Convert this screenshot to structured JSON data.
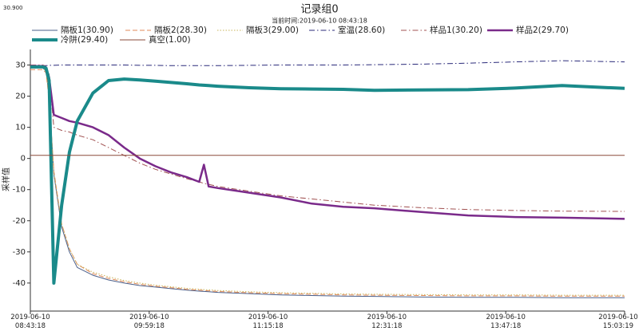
{
  "chart_data": {
    "type": "line",
    "corner_label": "30.900",
    "title": "记录组0",
    "subtitle": "当前时间:2019-06-10  08:43:18",
    "y_label": "采样值",
    "ylim": [
      -49,
      35
    ],
    "yticks": [
      30,
      20,
      10,
      0,
      -10,
      -20,
      -30,
      -40
    ],
    "xlim": [
      "2019-06-10 08:43:18",
      "2019-06-10 15:03:19"
    ],
    "xticks": [
      "2019-06-10 08:43:18",
      "2019-06-10 09:59:18",
      "2019-06-10 11:15:18",
      "2019-06-10 12:31:18",
      "2019-06-10 13:47:18",
      "2019-06-10 15:03:19"
    ],
    "grid": false,
    "x": [
      "2019-06-10 08:43:18",
      "2019-06-10 08:46:18",
      "2019-06-10 08:49:18",
      "2019-06-10 08:51:18",
      "2019-06-10 08:53:18",
      "2019-06-10 08:55:18",
      "2019-06-10 08:58:18",
      "2019-06-10 09:03:18",
      "2019-06-10 09:08:18",
      "2019-06-10 09:13:18",
      "2019-06-10 09:23:18",
      "2019-06-10 09:33:18",
      "2019-06-10 09:43:18",
      "2019-06-10 09:53:18",
      "2019-06-10 10:03:18",
      "2019-06-10 10:13:18",
      "2019-06-10 10:23:18",
      "2019-06-10 10:31:18",
      "2019-06-10 10:34:18",
      "2019-06-10 10:37:18",
      "2019-06-10 10:43:18",
      "2019-06-10 11:03:18",
      "2019-06-10 11:23:18",
      "2019-06-10 11:43:18",
      "2019-06-10 12:03:18",
      "2019-06-10 12:23:18",
      "2019-06-10 12:53:18",
      "2019-06-10 13:23:18",
      "2019-06-10 13:53:18",
      "2019-06-10 14:23:18",
      "2019-06-10 15:03:18"
    ],
    "series": [
      {
        "name": "隔板1(30.90)",
        "color": "#4a5f8a",
        "style": "solid",
        "line_width": 1,
        "values": [
          29,
          29,
          29,
          29,
          28,
          20,
          -5,
          -22,
          -30,
          -35,
          -37.5,
          -39,
          -40,
          -40.8,
          -41.3,
          -41.8,
          -42.3,
          -42.6,
          -42.7,
          -42.8,
          -43,
          -43.4,
          -43.8,
          -44,
          -44.2,
          -44.3,
          -44.5,
          -44.6,
          -44.6,
          -44.7,
          -44.7
        ]
      },
      {
        "name": "隔板2(28.30)",
        "color": "#e08a5a",
        "style": "dashed",
        "line_width": 1,
        "values": [
          28.5,
          28.5,
          28.5,
          28.5,
          27.5,
          19,
          -4,
          -21,
          -29,
          -34,
          -37,
          -38.5,
          -39.6,
          -40.4,
          -41,
          -41.5,
          -42,
          -42.3,
          -42.4,
          -42.5,
          -42.7,
          -43.1,
          -43.4,
          -43.6,
          -43.8,
          -43.9,
          -44,
          -44.1,
          -44.1,
          -44.2,
          -44.2
        ]
      },
      {
        "name": "隔板3(29.00)",
        "color": "#c8b45a",
        "style": "dotted",
        "line_width": 1,
        "values": [
          29,
          29,
          29,
          29,
          28,
          19.5,
          -4.5,
          -21,
          -29,
          -34,
          -36.5,
          -38,
          -39.2,
          -40,
          -40.7,
          -41.2,
          -41.7,
          -42,
          -42.1,
          -42.2,
          -42.4,
          -42.8,
          -43.1,
          -43.3,
          -43.5,
          -43.6,
          -43.7,
          -43.8,
          -43.8,
          -43.9,
          -43.9
        ]
      },
      {
        "name": "室温(28.60)",
        "color": "#2a2a7a",
        "style": "dashdot",
        "line_width": 1,
        "values": [
          29.8,
          29.8,
          29.8,
          29.8,
          29.8,
          29.9,
          29.9,
          30,
          30,
          30,
          30,
          30,
          30,
          29.9,
          29.9,
          29.8,
          29.8,
          29.8,
          29.8,
          29.8,
          29.8,
          29.9,
          30,
          30,
          30,
          30.1,
          30.3,
          30.6,
          31,
          31.4,
          31
        ]
      },
      {
        "name": "样品1(30.20)",
        "color": "#a05050",
        "style": "dashdot",
        "line_width": 1,
        "values": [
          30,
          30,
          30,
          30,
          29.5,
          27,
          10,
          9,
          8.5,
          7.5,
          6,
          3.5,
          1,
          -1.5,
          -3.5,
          -5,
          -6.5,
          -7.5,
          -8,
          -8.3,
          -9,
          -10.5,
          -12,
          -13,
          -14,
          -15,
          -15.8,
          -16.4,
          -16.7,
          -16.9,
          -17
        ]
      },
      {
        "name": "样品2(29.70)",
        "color": "#7a2a8a",
        "style": "solid",
        "line_width": 2.5,
        "values": [
          29.7,
          29.7,
          29.7,
          29.7,
          29.2,
          26,
          14,
          13,
          12,
          11.5,
          10,
          7.5,
          3.5,
          0,
          -2.5,
          -4.5,
          -6,
          -7.5,
          -2,
          -9,
          -9.5,
          -11,
          -12.5,
          -14.5,
          -15.5,
          -16,
          -17.2,
          -18.3,
          -18.8,
          -19,
          -19.4
        ]
      },
      {
        "name": "冷阱(29.40)",
        "color": "#1a8a8a",
        "style": "solid",
        "line_width": 4,
        "values": [
          29.4,
          29.4,
          29.4,
          29.4,
          29,
          25,
          -40,
          -15,
          2,
          12,
          21,
          25,
          25.5,
          25.2,
          24.8,
          24.4,
          24,
          23.6,
          23.5,
          23.4,
          23.2,
          22.7,
          22.4,
          22.3,
          22.2,
          21.9,
          22,
          22.1,
          22.6,
          23.4,
          22.5
        ]
      },
      {
        "name": "真空(1.00)",
        "color": "#8a4a3a",
        "style": "solid",
        "line_width": 1,
        "values": [
          1,
          1,
          1,
          1,
          1,
          1,
          1,
          1,
          1,
          1,
          1,
          1,
          1,
          1,
          1,
          1,
          1,
          1,
          1,
          1,
          1,
          1,
          1,
          1,
          1,
          1,
          1,
          1,
          1,
          1,
          1
        ]
      }
    ]
  }
}
